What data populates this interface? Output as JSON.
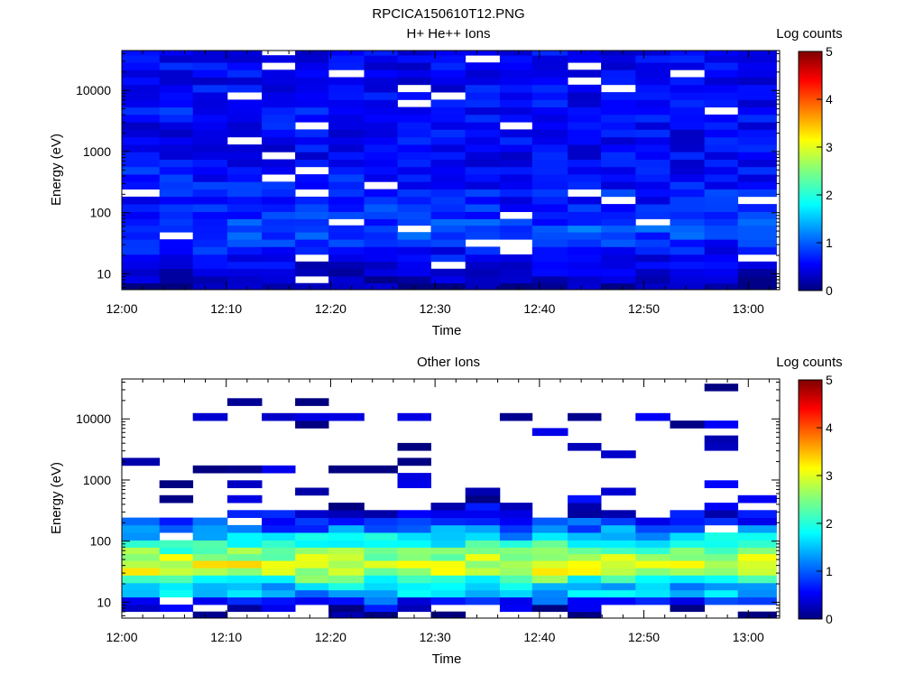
{
  "figure_title": "RPCICA150610T12.PNG",
  "chart_data": [
    {
      "type": "heatmap",
      "title": "H+ He++ Ions",
      "xlabel": "Time",
      "ylabel": "Energy (eV)",
      "x_tick_labels": [
        "12:00",
        "12:10",
        "12:20",
        "12:30",
        "12:40",
        "12:50",
        "13:00"
      ],
      "x_tick_minutes": [
        0,
        10,
        20,
        30,
        40,
        50,
        60
      ],
      "x_range_minutes": [
        0,
        63
      ],
      "y_scale": "log",
      "y_range": [
        5.5,
        45000
      ],
      "y_tick_values": [
        10,
        100,
        1000,
        10000
      ],
      "y_tick_labels": [
        "10",
        "100",
        "1000",
        "10000"
      ],
      "colorbar": {
        "label": "Log counts",
        "range": [
          0,
          5
        ],
        "ticks": [
          "0",
          "1",
          "2",
          "3",
          "4",
          "5"
        ],
        "colormap": "jet"
      },
      "time_bin_edges_minutes": [
        0,
        3.6,
        6.8,
        10.1,
        13.4,
        16.6,
        19.8,
        23.2,
        26.4,
        29.6,
        32.9,
        36.2,
        39.3,
        42.7,
        45.9,
        49.2,
        52.5,
        55.8,
        59.0,
        62.7
      ],
      "energy_bin_centers_eV": [
        6.2,
        8,
        10.5,
        14,
        18,
        24,
        32,
        42,
        55,
        70,
        90,
        120,
        160,
        210,
        280,
        370,
        490,
        650,
        860,
        1140,
        1500,
        2000,
        2650,
        3500,
        4650,
        6150,
        8150,
        10800,
        14300,
        19000,
        25000,
        33000,
        43000
      ],
      "profile_log_counts": [
        0.2,
        0.3,
        0.4,
        0.5,
        0.6,
        0.7,
        0.8,
        0.9,
        1.0,
        0.9,
        0.8,
        0.8,
        0.7,
        0.8,
        0.7,
        0.7,
        0.7,
        0.6,
        0.6,
        0.6,
        0.6,
        0.6,
        0.6,
        0.6,
        0.7,
        0.6,
        0.6,
        0.6,
        0.6,
        0.6,
        0.6,
        0.6,
        0.6
      ],
      "empty_fraction": 0.06
    },
    {
      "type": "heatmap",
      "title": "Other Ions",
      "xlabel": "Time",
      "ylabel": "Energy (eV)",
      "x_tick_labels": [
        "12:00",
        "12:10",
        "12:20",
        "12:30",
        "12:40",
        "12:50",
        "13:00"
      ],
      "x_tick_minutes": [
        0,
        10,
        20,
        30,
        40,
        50,
        60
      ],
      "x_range_minutes": [
        0,
        63
      ],
      "y_scale": "log",
      "y_range": [
        5.5,
        45000
      ],
      "y_tick_values": [
        10,
        100,
        1000,
        10000
      ],
      "y_tick_labels": [
        "10",
        "100",
        "1000",
        "10000"
      ],
      "colorbar": {
        "label": "Log counts",
        "range": [
          0,
          5
        ],
        "ticks": [
          "0",
          "1",
          "2",
          "3",
          "4",
          "5"
        ],
        "colormap": "jet"
      },
      "time_bin_edges_minutes": [
        0,
        3.6,
        6.8,
        10.1,
        13.4,
        16.6,
        19.8,
        23.2,
        26.4,
        29.6,
        32.9,
        36.2,
        39.3,
        42.7,
        45.9,
        49.2,
        52.5,
        55.8,
        59.0,
        62.7
      ],
      "energy_bin_centers_eV": [
        6.2,
        8,
        10.5,
        14,
        18,
        24,
        32,
        42,
        55,
        70,
        90,
        120,
        160,
        210,
        280,
        370,
        490,
        650,
        860,
        1140,
        1500,
        2000,
        2650,
        3500,
        4650,
        6150,
        8150,
        10800,
        14300,
        19000,
        25000,
        33000,
        43000
      ],
      "profile_log_counts": [
        0.0,
        0.3,
        0.8,
        1.5,
        1.6,
        2.2,
        2.8,
        3.0,
        2.7,
        2.4,
        2.0,
        1.6,
        1.2,
        0.9,
        0.6,
        0.4,
        0.3,
        0.25,
        0.2,
        0.2,
        0.2,
        0.2,
        0.15,
        0.15,
        0.15,
        0.15,
        0.15,
        0.15,
        0.1,
        0.1,
        0.1,
        0.1,
        0.1
      ],
      "presence_probability": [
        0.3,
        0.55,
        0.95,
        1.0,
        1.0,
        1.0,
        1.0,
        1.0,
        1.0,
        1.0,
        1.0,
        0.95,
        0.9,
        0.85,
        0.7,
        0.5,
        0.3,
        0.22,
        0.2,
        0.15,
        0.2,
        0.15,
        0.15,
        0.12,
        0.1,
        0.1,
        0.12,
        0.12,
        0.08,
        0.06,
        0.06,
        0.05,
        0.04
      ]
    }
  ]
}
